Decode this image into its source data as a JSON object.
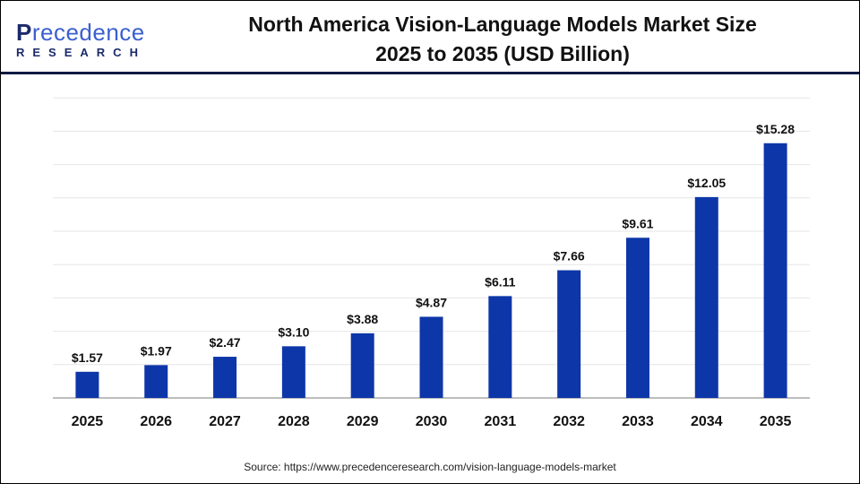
{
  "logo": {
    "line1": "Precedence",
    "line2": "RESEARCH"
  },
  "chart_data": {
    "type": "bar",
    "title": "North America Vision-Language Models Market Size 2025 to 2035 (USD Billion)",
    "title_line1": "North America Vision-Language Models Market Size",
    "title_line2": "2025 to 2035 (USD Billion)",
    "categories": [
      "2025",
      "2026",
      "2027",
      "2028",
      "2029",
      "2030",
      "2031",
      "2032",
      "2033",
      "2034",
      "2035"
    ],
    "values": [
      1.57,
      1.97,
      2.47,
      3.1,
      3.88,
      4.87,
      6.11,
      7.66,
      9.61,
      12.05,
      15.28
    ],
    "data_labels": [
      "$1.57",
      "$1.97",
      "$2.47",
      "$3.10",
      "$3.88",
      "$4.87",
      "$6.11",
      "$7.66",
      "$9.61",
      "$12.05",
      "$15.28"
    ],
    "xlabel": "",
    "ylabel": "",
    "ylim": [
      0,
      18
    ],
    "grid": true,
    "bar_color": "#0d36a8"
  },
  "source": "Source: https://www.precedenceresearch.com/vision-language-models-market"
}
